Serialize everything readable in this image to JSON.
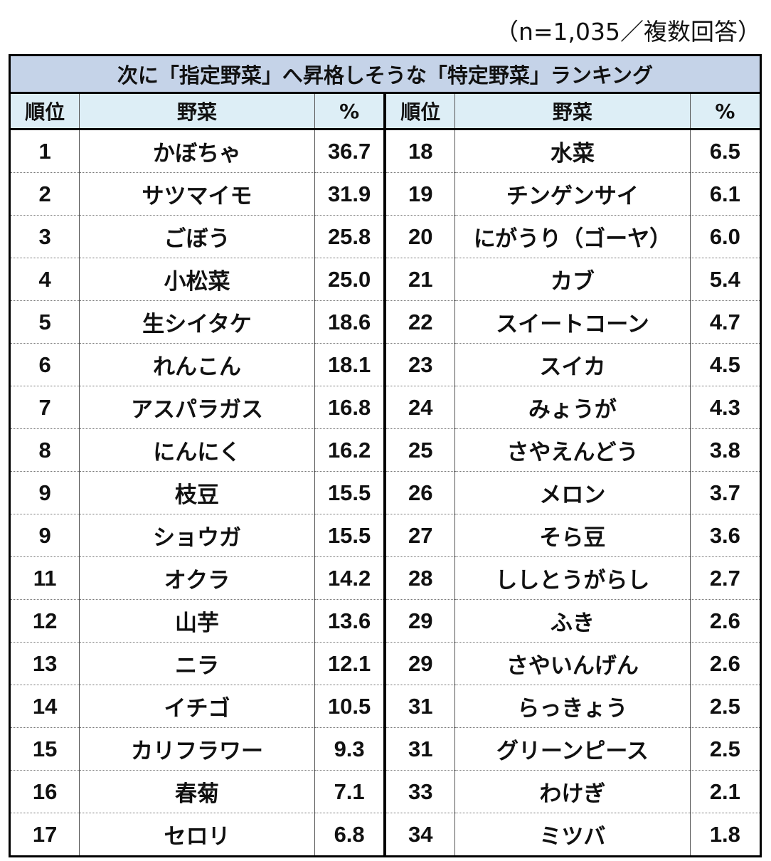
{
  "note": "（n=1,035／複数回答）",
  "title": "次に「指定野菜」へ昇格しそうな「特定野菜」ランキング",
  "headers": {
    "rank": "順位",
    "vegetable": "野菜",
    "percent": "%"
  },
  "left": [
    {
      "rank": "1",
      "name": "かぼちゃ",
      "pct": "36.7"
    },
    {
      "rank": "2",
      "name": "サツマイモ",
      "pct": "31.9"
    },
    {
      "rank": "3",
      "name": "ごぼう",
      "pct": "25.8"
    },
    {
      "rank": "4",
      "name": "小松菜",
      "pct": "25.0"
    },
    {
      "rank": "5",
      "name": "生シイタケ",
      "pct": "18.6"
    },
    {
      "rank": "6",
      "name": "れんこん",
      "pct": "18.1"
    },
    {
      "rank": "7",
      "name": "アスパラガス",
      "pct": "16.8"
    },
    {
      "rank": "8",
      "name": "にんにく",
      "pct": "16.2"
    },
    {
      "rank": "9",
      "name": "枝豆",
      "pct": "15.5"
    },
    {
      "rank": "9",
      "name": "ショウガ",
      "pct": "15.5"
    },
    {
      "rank": "11",
      "name": "オクラ",
      "pct": "14.2"
    },
    {
      "rank": "12",
      "name": "山芋",
      "pct": "13.6"
    },
    {
      "rank": "13",
      "name": "ニラ",
      "pct": "12.1"
    },
    {
      "rank": "14",
      "name": "イチゴ",
      "pct": "10.5"
    },
    {
      "rank": "15",
      "name": "カリフラワー",
      "pct": "9.3"
    },
    {
      "rank": "16",
      "name": "春菊",
      "pct": "7.1"
    },
    {
      "rank": "17",
      "name": "セロリ",
      "pct": "6.8"
    }
  ],
  "right": [
    {
      "rank": "18",
      "name": "水菜",
      "pct": "6.5"
    },
    {
      "rank": "19",
      "name": "チンゲンサイ",
      "pct": "6.1"
    },
    {
      "rank": "20",
      "name": "にがうり（ゴーヤ）",
      "pct": "6.0"
    },
    {
      "rank": "21",
      "name": "カブ",
      "pct": "5.4"
    },
    {
      "rank": "22",
      "name": "スイートコーン",
      "pct": "4.7"
    },
    {
      "rank": "23",
      "name": "スイカ",
      "pct": "4.5"
    },
    {
      "rank": "24",
      "name": "みょうが",
      "pct": "4.3"
    },
    {
      "rank": "25",
      "name": "さやえんどう",
      "pct": "3.8"
    },
    {
      "rank": "26",
      "name": "メロン",
      "pct": "3.7"
    },
    {
      "rank": "27",
      "name": "そら豆",
      "pct": "3.6"
    },
    {
      "rank": "28",
      "name": "ししとうがらし",
      "pct": "2.7"
    },
    {
      "rank": "29",
      "name": "ふき",
      "pct": "2.6"
    },
    {
      "rank": "29",
      "name": "さやいんげん",
      "pct": "2.6"
    },
    {
      "rank": "31",
      "name": "らっきょう",
      "pct": "2.5"
    },
    {
      "rank": "31",
      "name": "グリーンピース",
      "pct": "2.5"
    },
    {
      "rank": "33",
      "name": "わけぎ",
      "pct": "2.1"
    },
    {
      "rank": "34",
      "name": "ミツバ",
      "pct": "1.8"
    }
  ],
  "colors": {
    "title_bg": "#c5d3e8",
    "header_bg": "#ddeef6",
    "border": "#000000"
  }
}
